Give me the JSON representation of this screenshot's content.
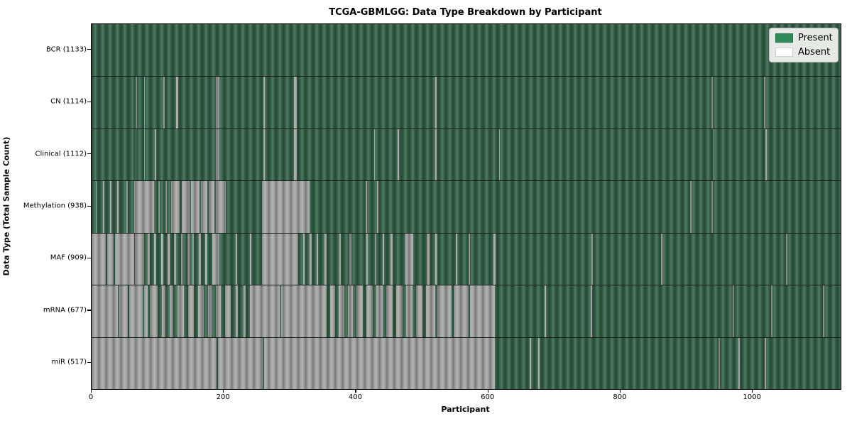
{
  "chart_data": {
    "type": "heatmap",
    "title": "TCGA-GBMLGG: Data Type Breakdown by Participant",
    "xlabel": "Participant",
    "ylabel": "Data Type (Total Sample Count)",
    "x_range": [
      0,
      1133
    ],
    "x_ticks": [
      0,
      200,
      400,
      600,
      800,
      1000
    ],
    "grid": false,
    "legend_position": "upper right",
    "colors": {
      "present_fill": "#35624a",
      "absent_fill": "#a6a6a6",
      "legend_present": "#2e8b57",
      "legend_absent": "#ffffff"
    },
    "legend": [
      {
        "label": "Present",
        "color_key": "legend_present"
      },
      {
        "label": "Absent",
        "color_key": "legend_absent"
      }
    ],
    "rows": [
      {
        "data_type": "BCR",
        "label": "BCR (1133)",
        "present_count": 1133,
        "absent_ranges": []
      },
      {
        "data_type": "CN",
        "label": "CN (1114)",
        "present_count": 1114,
        "absent_ranges": [
          [
            67,
            69
          ],
          [
            79,
            81
          ],
          [
            109,
            111
          ],
          [
            128,
            131
          ],
          [
            188,
            193
          ],
          [
            260,
            262
          ],
          [
            306,
            310
          ],
          [
            520,
            522
          ],
          [
            938,
            940
          ],
          [
            1017,
            1019
          ]
        ]
      },
      {
        "data_type": "Clinical",
        "label": "Clinical (1112)",
        "present_count": 1112,
        "absent_ranges": [
          [
            67,
            68
          ],
          [
            79,
            81
          ],
          [
            96,
            98
          ],
          [
            188,
            193
          ],
          [
            260,
            262
          ],
          [
            306,
            310
          ],
          [
            427,
            429
          ],
          [
            463,
            465
          ],
          [
            520,
            522
          ],
          [
            616,
            618
          ],
          [
            941,
            942
          ],
          [
            1019,
            1021
          ]
        ]
      },
      {
        "data_type": "Methylation",
        "label": "Methylation (938)",
        "present_count": 938,
        "absent_ranges": [
          [
            6,
            8
          ],
          [
            17,
            19
          ],
          [
            28,
            30
          ],
          [
            39,
            41
          ],
          [
            53,
            55
          ],
          [
            64,
            94
          ],
          [
            101,
            103
          ],
          [
            112,
            114
          ],
          [
            120,
            133
          ],
          [
            136,
            148
          ],
          [
            150,
            163
          ],
          [
            165,
            175
          ],
          [
            177,
            186
          ],
          [
            188,
            203
          ],
          [
            258,
            330
          ],
          [
            415,
            417
          ],
          [
            432,
            434
          ],
          [
            905,
            907
          ],
          [
            938,
            940
          ]
        ]
      },
      {
        "data_type": "MAF",
        "label": "MAF (909)",
        "present_count": 909,
        "absent_ranges": [
          [
            0,
            22
          ],
          [
            24,
            33
          ],
          [
            35,
            64
          ],
          [
            66,
            80
          ],
          [
            85,
            88
          ],
          [
            95,
            98
          ],
          [
            105,
            108
          ],
          [
            115,
            118
          ],
          [
            125,
            128
          ],
          [
            135,
            138
          ],
          [
            145,
            148
          ],
          [
            152,
            155
          ],
          [
            162,
            165
          ],
          [
            172,
            175
          ],
          [
            183,
            193
          ],
          [
            218,
            220
          ],
          [
            240,
            242
          ],
          [
            258,
            312
          ],
          [
            320,
            323
          ],
          [
            330,
            333
          ],
          [
            340,
            343
          ],
          [
            352,
            355
          ],
          [
            375,
            377
          ],
          [
            390,
            393
          ],
          [
            415,
            418
          ],
          [
            428,
            430
          ],
          [
            440,
            443
          ],
          [
            452,
            455
          ],
          [
            475,
            486
          ],
          [
            508,
            511
          ],
          [
            520,
            523
          ],
          [
            551,
            553
          ],
          [
            570,
            572
          ],
          [
            608,
            611
          ],
          [
            756,
            758
          ],
          [
            861,
            863
          ],
          [
            1050,
            1052
          ]
        ]
      },
      {
        "data_type": "mRNA",
        "label": "mRNA (677)",
        "present_count": 677,
        "absent_ranges": [
          [
            0,
            40
          ],
          [
            42,
            55
          ],
          [
            57,
            78
          ],
          [
            80,
            85
          ],
          [
            88,
            100
          ],
          [
            106,
            112
          ],
          [
            118,
            124
          ],
          [
            130,
            140
          ],
          [
            146,
            155
          ],
          [
            161,
            170
          ],
          [
            176,
            182
          ],
          [
            188,
            196
          ],
          [
            202,
            210
          ],
          [
            218,
            221
          ],
          [
            230,
            233
          ],
          [
            240,
            285
          ],
          [
            287,
            348
          ],
          [
            348,
            355
          ],
          [
            361,
            368
          ],
          [
            374,
            382
          ],
          [
            388,
            395
          ],
          [
            401,
            410
          ],
          [
            416,
            425
          ],
          [
            431,
            440
          ],
          [
            446,
            455
          ],
          [
            461,
            470
          ],
          [
            476,
            485
          ],
          [
            491,
            500
          ],
          [
            506,
            520
          ],
          [
            523,
            545
          ],
          [
            548,
            570
          ],
          [
            572,
            610
          ],
          [
            685,
            687
          ],
          [
            755,
            757
          ],
          [
            970,
            972
          ],
          [
            1028,
            1030
          ],
          [
            1106,
            1108
          ]
        ]
      },
      {
        "data_type": "miR",
        "label": "miR (517)",
        "present_count": 517,
        "absent_ranges": [
          [
            0,
            189
          ],
          [
            191,
            259
          ],
          [
            261,
            610
          ],
          [
            663,
            665
          ],
          [
            676,
            678
          ],
          [
            948,
            950
          ],
          [
            978,
            980
          ],
          [
            1018,
            1020
          ]
        ]
      }
    ]
  }
}
